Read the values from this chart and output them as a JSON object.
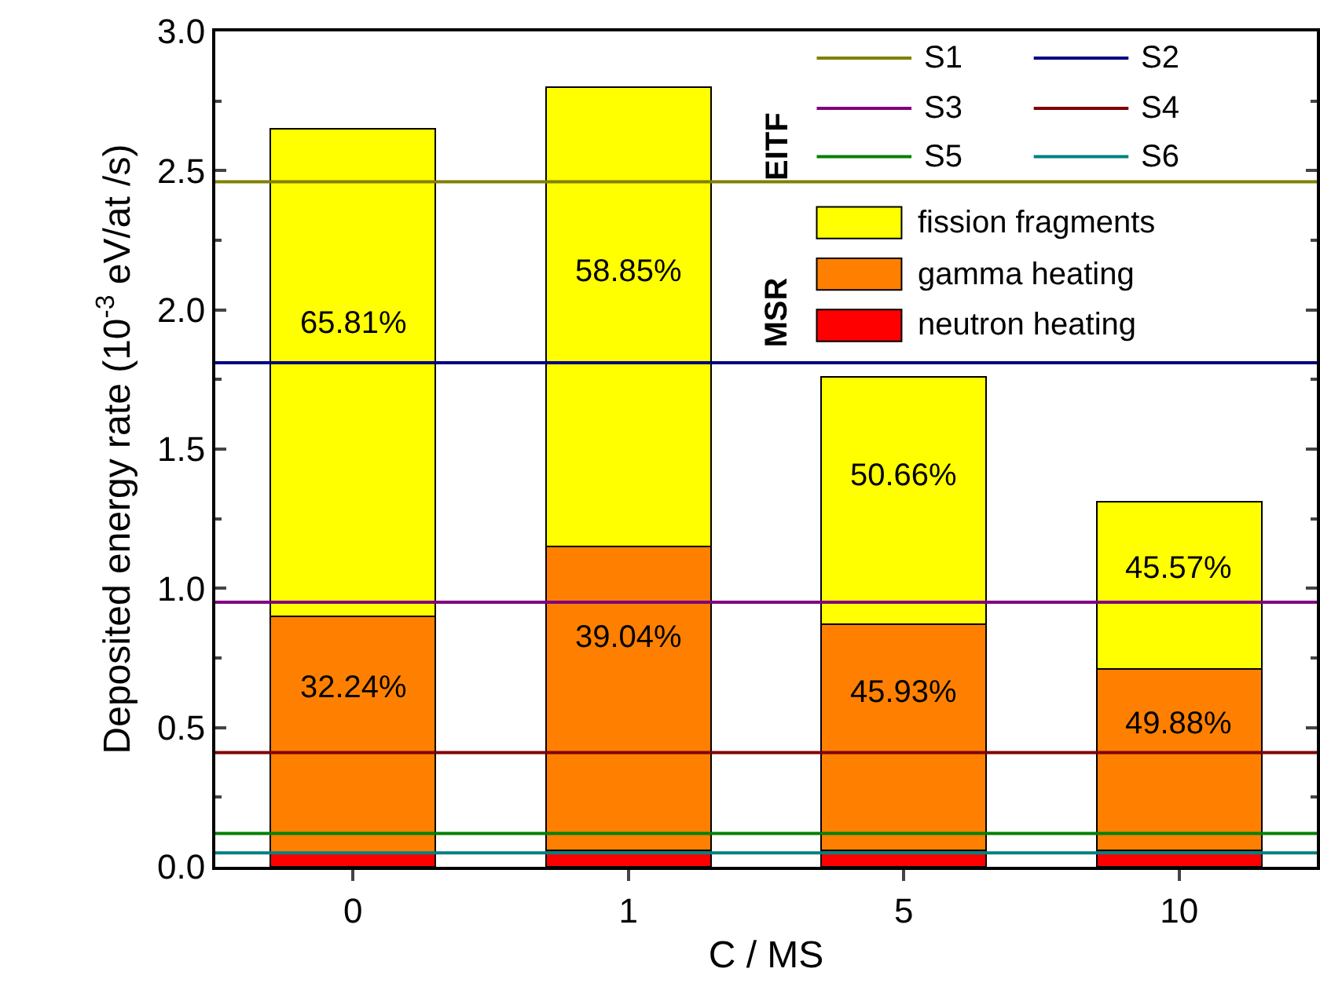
{
  "chart_data": {
    "type": "bar",
    "stacked": true,
    "xlabel": "C / MS",
    "ylabel": "Deposited energy rate (10$^{-3}$ eV/at /s)",
    "categories": [
      "0",
      "1",
      "5",
      "10"
    ],
    "series": [
      {
        "name": "neutron heating",
        "color": "#ff0000",
        "values": [
          0.05,
          0.06,
          0.06,
          0.06
        ]
      },
      {
        "name": "gamma heating",
        "color": "#ff8000",
        "values": [
          0.85,
          1.09,
          0.81,
          0.65
        ]
      },
      {
        "name": "fission fragments",
        "color": "#ffff00",
        "values": [
          1.75,
          1.65,
          0.89,
          0.6
        ]
      }
    ],
    "ylim": [
      0,
      3
    ],
    "yticks": [
      {
        "value": 0,
        "label": "0.0"
      },
      {
        "value": 0.5,
        "label": "0.5"
      },
      {
        "value": 1,
        "label": "1.0"
      },
      {
        "value": 1.5,
        "label": "1.5"
      },
      {
        "value": 2,
        "label": "2.0"
      },
      {
        "value": 2.5,
        "label": "2.5"
      },
      {
        "value": 3,
        "label": "3.0"
      }
    ],
    "ref_lines": [
      {
        "axis": "y",
        "value": 2.46,
        "label": "S1",
        "color": "#808000"
      },
      {
        "axis": "y",
        "value": 1.81,
        "label": "S2",
        "color": "#000080"
      },
      {
        "axis": "y",
        "value": 0.95,
        "label": "S3",
        "color": "#800080"
      },
      {
        "axis": "y",
        "value": 0.41,
        "label": "S4",
        "color": "#800000"
      },
      {
        "axis": "y",
        "value": 0.12,
        "label": "S5",
        "color": "#008000"
      },
      {
        "axis": "y",
        "value": 0.05,
        "label": "S6",
        "color": "#008080"
      }
    ],
    "annotations": [
      "EITF",
      "MSR",
      "65.81%",
      "58.85%",
      "50.66%",
      "45.57%",
      "32.24%",
      "39.04%",
      "45.93%",
      "49.88%"
    ],
    "grid": false,
    "legend": "top right"
  }
}
